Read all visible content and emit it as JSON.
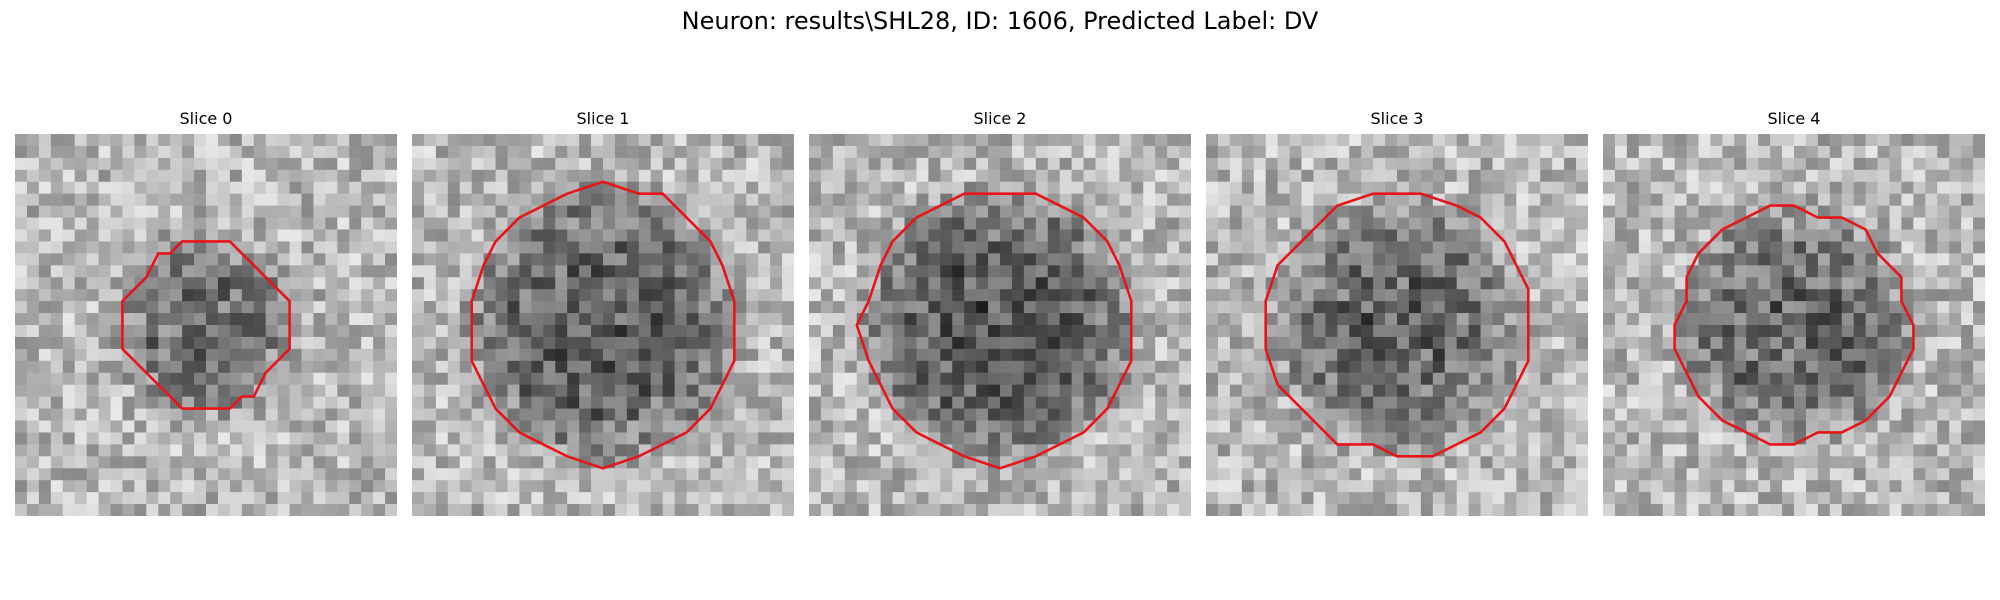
{
  "figure": {
    "title": "Neuron: results\\SHL28, ID: 1606, Predicted Label: DV",
    "colormap": "gray",
    "contour_color": "#e8141a"
  },
  "slices": [
    {
      "label": "Slice 0",
      "seed": 11,
      "blob_radius": 0.27,
      "blob_darkness": 0.3,
      "contour_radius": 0.215
    },
    {
      "label": "Slice 1",
      "seed": 23,
      "blob_radius": 0.4,
      "blob_darkness": 0.36,
      "contour_radius": 0.355
    },
    {
      "label": "Slice 2",
      "seed": 37,
      "blob_radius": 0.4,
      "blob_darkness": 0.38,
      "contour_radius": 0.355
    },
    {
      "label": "Slice 3",
      "seed": 51,
      "blob_radius": 0.36,
      "blob_darkness": 0.33,
      "contour_radius": 0.345
    },
    {
      "label": "Slice 4",
      "seed": 67,
      "blob_radius": 0.34,
      "blob_darkness": 0.32,
      "contour_radius": 0.31
    }
  ]
}
